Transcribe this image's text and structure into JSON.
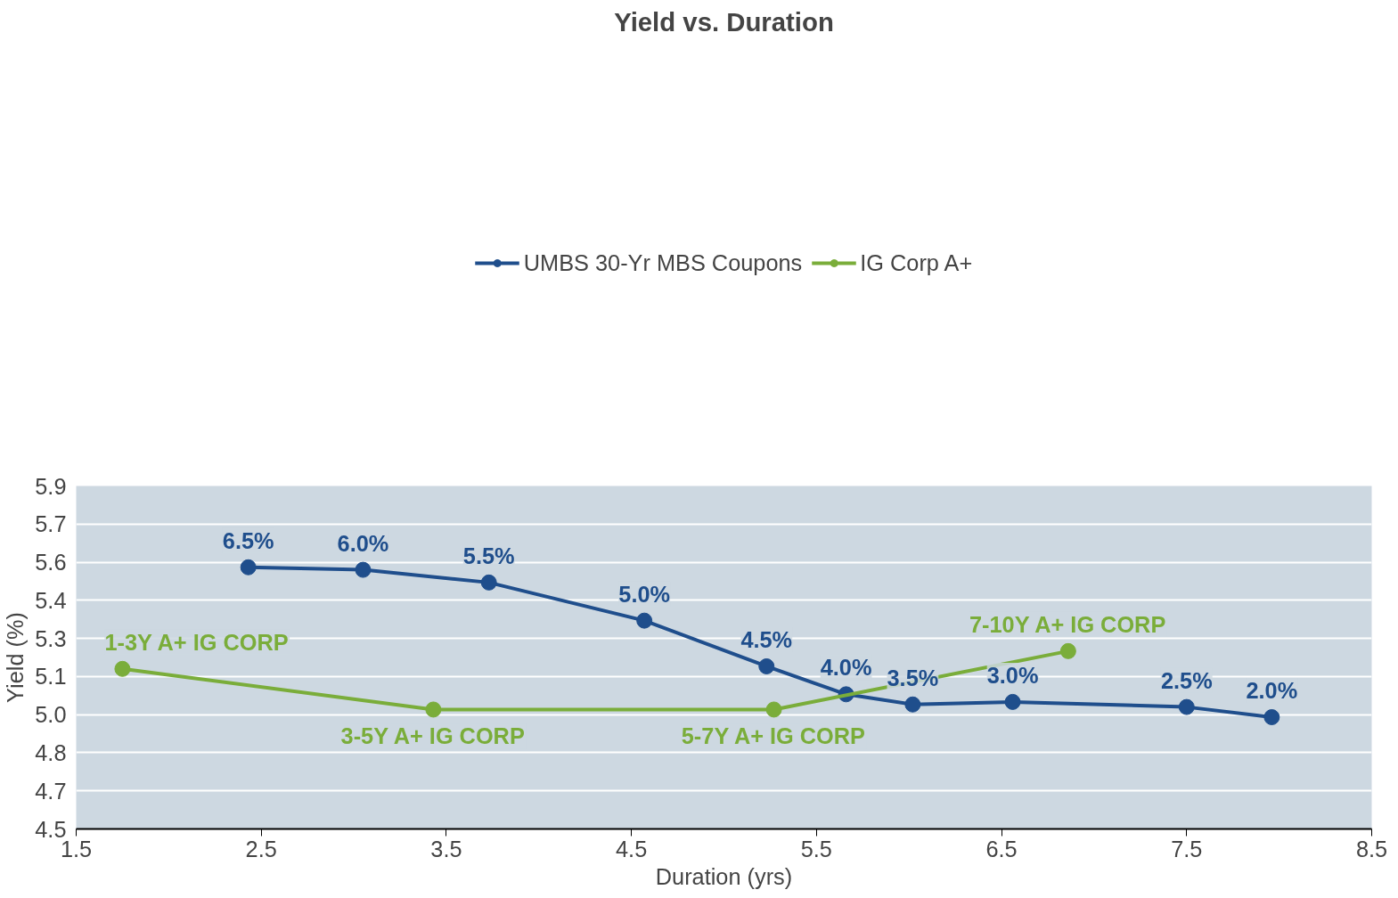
{
  "chart_data": {
    "type": "line",
    "title": "Yield vs. Duration",
    "xlabel": "Duration (yrs)",
    "ylabel": "Yield (%)",
    "series": [
      {
        "name": "UMBS 30-Yr MBS Coupons",
        "color": "#1f4e8c",
        "x": [
          2.43,
          3.05,
          3.73,
          4.57,
          5.23,
          5.66,
          6.02,
          6.56,
          7.5,
          7.96
        ],
        "values": [
          5.53,
          5.52,
          5.47,
          5.32,
          5.14,
          5.03,
          4.99,
          5.0,
          4.98,
          4.94
        ]
      },
      {
        "name": "IG Corp A+",
        "color": "#7aad3a",
        "x": [
          1.75,
          3.43,
          5.27,
          6.86
        ],
        "values": [
          5.13,
          4.97,
          4.97,
          5.2
        ]
      }
    ],
    "annotations": [
      {
        "text": "6.5%",
        "x": 2.43,
        "y": 5.53
      },
      {
        "text": "6.0%",
        "x": 3.05,
        "y": 5.52
      },
      {
        "text": "5.5%",
        "x": 3.73,
        "y": 5.47
      },
      {
        "text": "5.0%",
        "x": 4.57,
        "y": 5.32
      },
      {
        "text": "4.5%",
        "x": 5.23,
        "y": 5.14
      },
      {
        "text": "4.0%",
        "x": 5.66,
        "y": 5.03
      },
      {
        "text": "3.5%",
        "x": 6.02,
        "y": 4.99
      },
      {
        "text": "3.0%",
        "x": 6.56,
        "y": 5.0
      },
      {
        "text": "2.5%",
        "x": 7.5,
        "y": 4.98
      },
      {
        "text": "2.0%",
        "x": 7.96,
        "y": 4.94
      },
      {
        "text": "1-3Y A+ IG CORP",
        "x": 1.75,
        "y": 5.13
      },
      {
        "text": "3-5Y A+ IG CORP",
        "x": 3.43,
        "y": 4.97
      },
      {
        "text": "5-7Y A+ IG CORP",
        "x": 5.27,
        "y": 4.97
      },
      {
        "text": "7-10Y A+ IG CORP",
        "x": 6.86,
        "y": 5.2
      }
    ],
    "xlim": [
      1.5,
      8.5
    ],
    "xticks": [
      1.5,
      2.5,
      3.5,
      4.5,
      5.5,
      6.5,
      7.5,
      8.5
    ],
    "ylim": [
      4.5,
      5.85
    ],
    "yticks": [
      4.5,
      {
        "value": 4.65,
        "label": "4.7"
      },
      4.8,
      {
        "value": 4.95,
        "label": "5.0"
      },
      5.1,
      {
        "value": 5.25,
        "label": "5.3"
      },
      5.4,
      {
        "value": 5.55,
        "label": "5.6"
      },
      5.7,
      {
        "value": 5.85,
        "label": "5.9"
      }
    ],
    "grid": "y",
    "legend": "top",
    "marker": "circle",
    "line_style": "solid"
  }
}
